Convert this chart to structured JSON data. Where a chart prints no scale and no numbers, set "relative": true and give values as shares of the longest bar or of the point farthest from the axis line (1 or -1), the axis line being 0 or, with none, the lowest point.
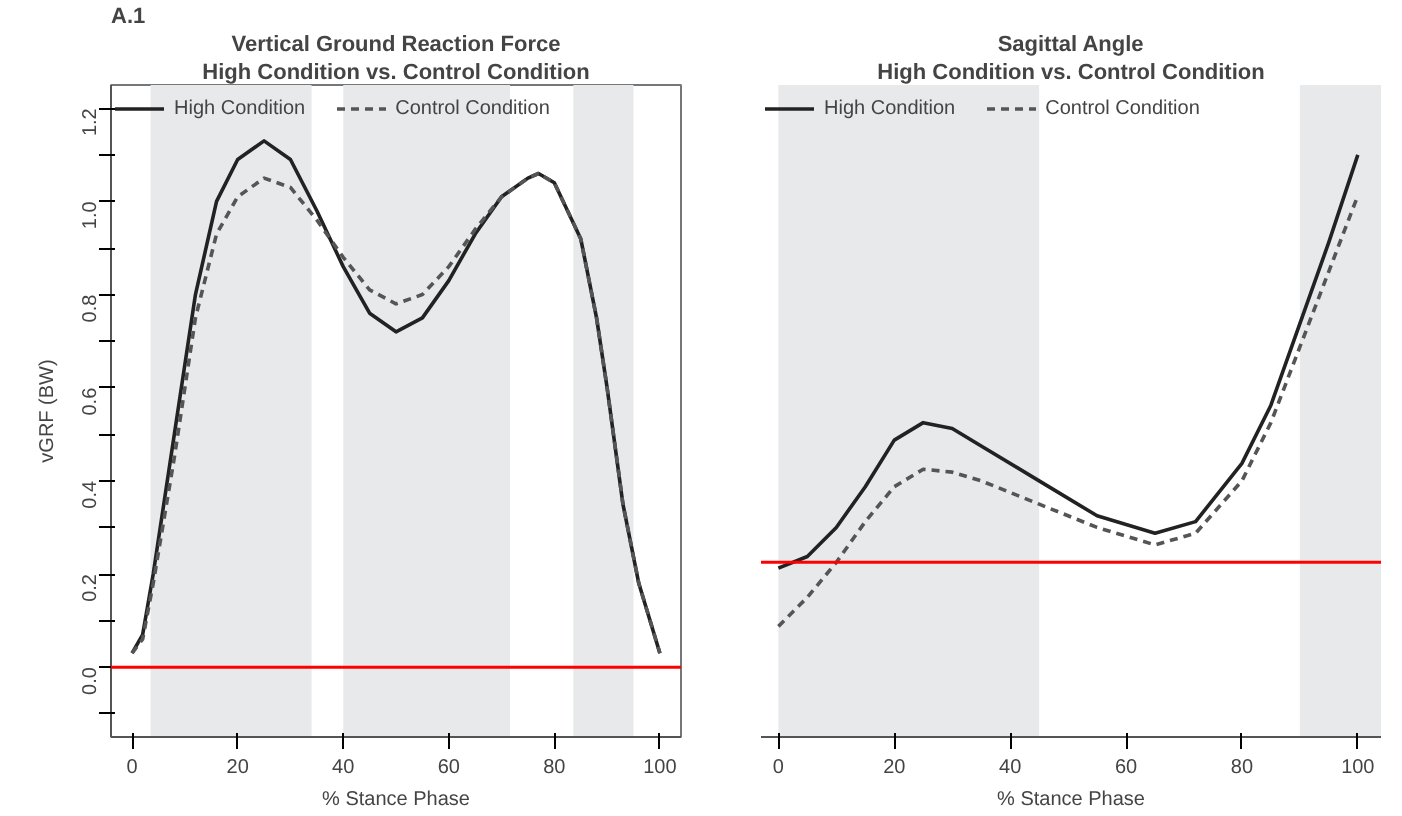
{
  "chart_data": [
    {
      "type": "line",
      "title": "Vertical Ground Reaction Force",
      "subtitle": "High Condition vs. Control Condition",
      "xlabel": "% Stance Phase",
      "ylabel": "vGRF (BW)",
      "annotations": [
        "A.1"
      ],
      "x": [
        0,
        2,
        4,
        8,
        12,
        16,
        20,
        25,
        30,
        35,
        40,
        45,
        50,
        55,
        60,
        65,
        70,
        75,
        77,
        80,
        85,
        88,
        90,
        93,
        96,
        100
      ],
      "series": [
        {
          "name": "High Condition",
          "color": "#222222",
          "line_style": "solid",
          "values": [
            0.03,
            0.07,
            0.2,
            0.5,
            0.8,
            1.0,
            1.09,
            1.13,
            1.09,
            0.98,
            0.86,
            0.76,
            0.72,
            0.75,
            0.83,
            0.93,
            1.01,
            1.05,
            1.06,
            1.04,
            0.92,
            0.75,
            0.6,
            0.35,
            0.18,
            0.03
          ]
        },
        {
          "name": "Control Condition",
          "color": "#555555",
          "line_style": "dashed",
          "values": [
            0.03,
            0.06,
            0.18,
            0.45,
            0.75,
            0.93,
            1.01,
            1.05,
            1.03,
            0.96,
            0.88,
            0.81,
            0.78,
            0.8,
            0.86,
            0.94,
            1.01,
            1.05,
            1.06,
            1.04,
            0.92,
            0.75,
            0.6,
            0.35,
            0.18,
            0.03
          ]
        }
      ],
      "xlim": [
        -4,
        104
      ],
      "ylim": [
        -0.15,
        1.25
      ],
      "xticks": [
        0,
        20,
        40,
        60,
        80,
        100
      ],
      "yticks": [
        {
          "value": -0.1,
          "label": null
        },
        {
          "value": 0,
          "label": "0.0"
        },
        {
          "value": 0.1,
          "label": null
        },
        0.2,
        {
          "value": 0.3,
          "label": null
        },
        0.4,
        {
          "value": 0.5,
          "label": null
        },
        0.6,
        {
          "value": 0.7,
          "label": null
        },
        0.8,
        {
          "value": 0.9,
          "label": null
        },
        {
          "value": 1,
          "label": "1.0"
        },
        {
          "value": 1.1,
          "label": null
        },
        1.2
      ],
      "ref_lines": [
        {
          "axis": "y",
          "value": 0,
          "color": "#ff0000"
        }
      ],
      "bands": [
        {
          "axis": "x",
          "from": 3.5,
          "to": 34,
          "color": "#e8e9eb"
        },
        {
          "axis": "x",
          "from": 40,
          "to": 71.6,
          "color": "#e8e9eb"
        },
        {
          "axis": "x",
          "from": 83.6,
          "to": 95,
          "color": "#e8e9eb"
        }
      ],
      "legend": "top left",
      "grid": false,
      "marker": "none"
    },
    {
      "type": "line",
      "title": "Sagittal Angle",
      "subtitle": "High Condition vs. Control Condition",
      "xlabel": "% Stance Phase",
      "relative": true,
      "x": [
        0,
        5,
        10,
        15,
        20,
        25,
        30,
        35,
        45,
        55,
        65,
        72,
        80,
        85,
        90,
        95,
        100
      ],
      "series": [
        {
          "name": "High Condition",
          "color": "#222222",
          "line_style": "solid",
          "values": [
            0.29,
            0.31,
            0.36,
            0.43,
            0.51,
            0.54,
            0.53,
            0.5,
            0.44,
            0.38,
            0.35,
            0.37,
            0.47,
            0.57,
            0.71,
            0.85,
            1.0
          ]
        },
        {
          "name": "Control Condition",
          "color": "#555555",
          "line_style": "dashed",
          "values": [
            0.19,
            0.24,
            0.3,
            0.37,
            0.43,
            0.46,
            0.455,
            0.44,
            0.4,
            0.36,
            0.33,
            0.35,
            0.44,
            0.54,
            0.67,
            0.8,
            0.93
          ]
        }
      ],
      "xlim": [
        -3,
        104
      ],
      "xticks": [
        0,
        20,
        40,
        60,
        80,
        100
      ],
      "ref_lines": [
        {
          "axis": "y",
          "value": 0.3,
          "color": "#ff0000"
        }
      ],
      "bands": [
        {
          "axis": "x",
          "from": 0,
          "to": 45,
          "color": "#e8e9eb"
        },
        {
          "axis": "x",
          "from": 90,
          "to": 104,
          "color": "#e8e9eb"
        }
      ],
      "legend": "top left",
      "grid": false,
      "marker": "none"
    }
  ]
}
